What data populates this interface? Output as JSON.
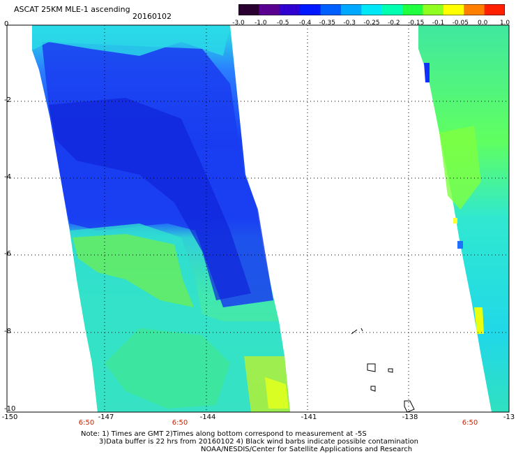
{
  "header": {
    "title": "ASCAT 25KM MLE-1 ascending",
    "date": "20160102"
  },
  "colorbar": {
    "labels": [
      "-3.0",
      "-1.0",
      "-0.5",
      "-0.4",
      "-0.35",
      "-0.3",
      "-0.25",
      "-0.2",
      "-0.15",
      "-0.1",
      "-0.05",
      "0.0",
      "1.0"
    ],
    "colors": [
      "#2a0030",
      "#5a0090",
      "#3000d0",
      "#0018ff",
      "#0060ff",
      "#00a8ff",
      "#00e8f8",
      "#00ffb0",
      "#20ff40",
      "#90ff20",
      "#ffff00",
      "#ff8000",
      "#ff2000"
    ]
  },
  "axes": {
    "y_labels": [
      "0",
      "-2",
      "-4",
      "-6",
      "-8",
      "-10"
    ],
    "x_labels": [
      "-150",
      "-147",
      "-144",
      "-141",
      "-138",
      "-13"
    ],
    "time_labels": [
      "6:50",
      "6:50",
      "6:50"
    ]
  },
  "notes": [
    "Note: 1) Times are GMT 2)Times along bottom correspond to measurement at -5S",
    "3)Data buffer is 22 hrs from 20160102 4) Black wind barbs indicate possible contamination",
    "NOAA/NESDIS/Center for Satellite Applications and Research"
  ]
}
